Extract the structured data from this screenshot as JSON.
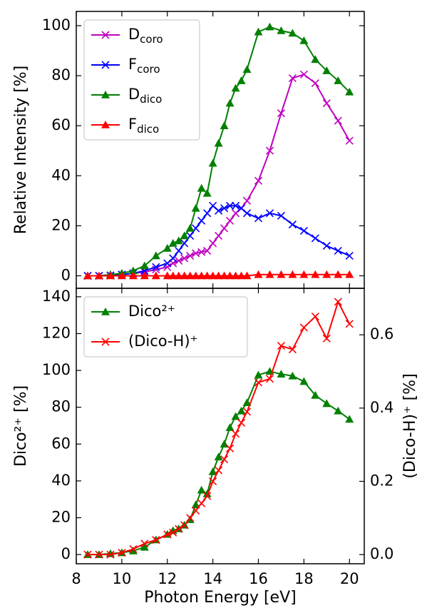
{
  "chart_data": [
    {
      "type": "line",
      "ylabel": "Relative Intensity [%]",
      "x": [
        8.5,
        9,
        9.5,
        10,
        10.5,
        11,
        11.5,
        12,
        12.25,
        12.5,
        12.75,
        13,
        13.25,
        13.5,
        13.75,
        14,
        14.25,
        14.5,
        14.75,
        15,
        15.25,
        15.5,
        16,
        16.5,
        17,
        17.5,
        18,
        18.5,
        19,
        19.5,
        20
      ],
      "xlim": [
        8,
        20.65
      ],
      "xticks": [
        8,
        10,
        12,
        14,
        16,
        18,
        20
      ],
      "ylim": [
        -5,
        105.7
      ],
      "yticks": [
        0,
        20,
        40,
        60,
        80,
        100
      ],
      "legend": "upper left",
      "series": [
        {
          "name": "D",
          "subscript": "coro",
          "color": "#bf00bf",
          "marker": "x",
          "values": [
            0,
            0,
            0,
            0.5,
            1,
            1.5,
            2.5,
            3.5,
            5,
            6,
            7,
            8,
            9,
            9.5,
            10,
            13,
            16,
            19,
            22,
            25,
            27,
            30,
            38,
            50,
            65,
            79,
            80.5,
            77,
            69,
            62,
            54
          ]
        },
        {
          "name": "F",
          "subscript": "coro",
          "color": "#0000ff",
          "marker": "x",
          "values": [
            0,
            0,
            0.2,
            0.5,
            1,
            2,
            3.5,
            5,
            7,
            10,
            13,
            16,
            19,
            22,
            25,
            28,
            26,
            27,
            28,
            28,
            27,
            25,
            23,
            25,
            24,
            20.5,
            18,
            15,
            12,
            10,
            8
          ]
        },
        {
          "name": "D",
          "subscript": "dico",
          "color": "#008000",
          "marker": "triangle",
          "values": [
            0,
            0,
            0.5,
            1,
            2,
            4,
            8,
            11,
            13,
            14,
            16,
            19,
            27,
            35,
            33,
            45,
            53,
            60,
            69,
            75,
            78,
            82.5,
            97.5,
            99.5,
            98,
            97,
            94,
            86.5,
            82,
            78,
            73.5
          ]
        },
        {
          "name": "F",
          "subscript": "dico",
          "color": "#ff0000",
          "marker": "triangle",
          "values": [
            0,
            0,
            0,
            0,
            0,
            0,
            0,
            0,
            0,
            0,
            0,
            0,
            0,
            0,
            0,
            0,
            0,
            0,
            0,
            0,
            0,
            0,
            0.5,
            0.5,
            0.5,
            0.5,
            0.5,
            0.5,
            0.5,
            0.5,
            0.5
          ]
        }
      ]
    },
    {
      "type": "line",
      "xlabel": "Photon Energy [eV]",
      "ylabel": "Dico²⁺ [%]",
      "y2label": "(Dico-H)⁺ [%]",
      "x": [
        8.5,
        9,
        9.5,
        10,
        10.5,
        11,
        11.5,
        12,
        12.25,
        12.5,
        12.75,
        13,
        13.25,
        13.5,
        13.75,
        14,
        14.25,
        14.5,
        14.75,
        15,
        15.25,
        15.5,
        16,
        16.5,
        17,
        17.5,
        18,
        18.5,
        19,
        19.5,
        20
      ],
      "xlim": [
        8,
        20.65
      ],
      "xticks": [
        8,
        10,
        12,
        14,
        16,
        18,
        20
      ],
      "ylim": [
        -5,
        144.6
      ],
      "yticks": [
        0,
        20,
        40,
        60,
        80,
        100,
        120,
        140
      ],
      "y2lim": [
        -0.025,
        0.727
      ],
      "y2ticks": [
        {
          "value": 0,
          "label": "0.0"
        },
        0.2,
        0.4,
        0.6
      ],
      "legend": "upper left",
      "series": [
        {
          "name": "Dico²⁺",
          "color": "#008000",
          "marker": "triangle",
          "values": [
            0,
            0,
            0.5,
            1,
            2,
            4,
            8,
            11,
            13,
            14,
            16,
            19,
            27,
            35,
            33,
            45,
            53,
            60,
            69,
            75,
            78,
            82.5,
            97.5,
            99.5,
            98,
            97,
            94,
            86.5,
            82,
            78,
            73.5
          ]
        },
        {
          "name": "(Dico-H)⁺",
          "color": "#ff0000",
          "marker": "x",
          "axis": "y2",
          "values": [
            0,
            0,
            0,
            0.005,
            0.015,
            0.03,
            0.04,
            0.055,
            0.06,
            0.07,
            0.08,
            0.1,
            0.12,
            0.14,
            0.16,
            0.2,
            0.23,
            0.26,
            0.29,
            0.33,
            0.36,
            0.39,
            0.47,
            0.48,
            0.57,
            0.56,
            0.62,
            0.65,
            0.59,
            0.69,
            0.63
          ]
        }
      ]
    }
  ]
}
